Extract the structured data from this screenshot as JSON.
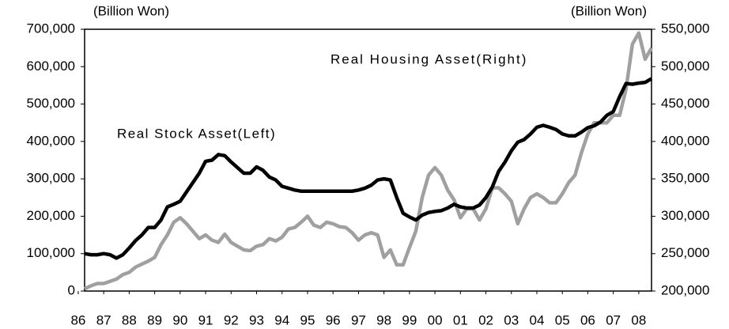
{
  "chart_data": {
    "type": "line",
    "y_unit_left": "(Billion Won)",
    "y_unit_right": "(Billion Won)",
    "x": [
      1986.25,
      1986.5,
      1986.75,
      1987,
      1987.25,
      1987.5,
      1987.75,
      1988,
      1988.25,
      1988.5,
      1988.75,
      1989,
      1989.25,
      1989.5,
      1989.75,
      1990,
      1990.25,
      1990.5,
      1990.75,
      1991,
      1991.25,
      1991.5,
      1991.75,
      1992,
      1992.25,
      1992.5,
      1992.75,
      1993,
      1993.25,
      1993.5,
      1993.75,
      1994,
      1994.25,
      1994.5,
      1994.75,
      1995,
      1995.25,
      1995.5,
      1995.75,
      1996,
      1996.25,
      1996.5,
      1996.75,
      1997,
      1997.25,
      1997.5,
      1997.75,
      1998,
      1998.25,
      1998.5,
      1998.75,
      1999,
      1999.25,
      1999.5,
      1999.75,
      2000,
      2000.25,
      2000.5,
      2000.75,
      2001,
      2001.25,
      2001.5,
      2001.75,
      2002,
      2002.25,
      2002.5,
      2002.75,
      2003,
      2003.25,
      2003.5,
      2003.75,
      2004,
      2004.25,
      2004.5,
      2004.75,
      2005,
      2005.25,
      2005.5,
      2005.75,
      2006,
      2006.25,
      2006.5,
      2006.75,
      2007,
      2007.25,
      2007.5,
      2007.75,
      2008,
      2008.25,
      2008.5
    ],
    "series": [
      {
        "name": "Real Housing Asset(Right)",
        "color": "#a0a0a0",
        "axis": "y2",
        "values": [
          203000,
          207000,
          210000,
          210000,
          213000,
          216000,
          222000,
          225000,
          232000,
          236000,
          240000,
          245000,
          262000,
          275000,
          292000,
          298000,
          290000,
          280000,
          270000,
          275000,
          268000,
          265000,
          276000,
          265000,
          260000,
          255000,
          254000,
          260000,
          262000,
          270000,
          267000,
          272000,
          283000,
          285000,
          292000,
          300000,
          288000,
          285000,
          292000,
          290000,
          286000,
          285000,
          278000,
          268000,
          275000,
          278000,
          275000,
          245000,
          255000,
          235000,
          235000,
          258000,
          280000,
          325000,
          355000,
          365000,
          355000,
          335000,
          322000,
          298000,
          310000,
          310000,
          295000,
          310000,
          338000,
          338000,
          330000,
          320000,
          290000,
          310000,
          325000,
          330000,
          325000,
          318000,
          318000,
          330000,
          345000,
          355000,
          385000,
          410000,
          425000,
          425000,
          425000,
          435000,
          435000,
          470000,
          530000,
          545000,
          510000,
          525000
        ]
      },
      {
        "name": "Real Stock Asset(Left)",
        "color": "#000000",
        "values": [
          100000,
          97000,
          97000,
          100000,
          97000,
          88000,
          97000,
          115000,
          135000,
          150000,
          170000,
          170000,
          190000,
          225000,
          232000,
          240000,
          265000,
          290000,
          315000,
          347000,
          350000,
          365000,
          362000,
          345000,
          330000,
          315000,
          315000,
          332000,
          323000,
          305000,
          297000,
          280000,
          275000,
          270000,
          267000,
          267000,
          267000,
          267000,
          267000,
          267000,
          267000,
          267000,
          267000,
          270000,
          275000,
          283000,
          297000,
          300000,
          297000,
          250000,
          208000,
          198000,
          190000,
          203000,
          210000,
          213000,
          215000,
          222000,
          232000,
          225000,
          222000,
          222000,
          230000,
          250000,
          278000,
          320000,
          345000,
          375000,
          398000,
          405000,
          420000,
          438000,
          443000,
          438000,
          432000,
          420000,
          415000,
          415000,
          425000,
          437000,
          442000,
          452000,
          470000,
          480000,
          520000,
          555000,
          553000,
          556000,
          558000,
          568000
        ]
      }
    ],
    "xlim": [
      1986.25,
      2008.5
    ],
    "xticks": [
      {
        "value": 1986,
        "label": "86"
      },
      {
        "value": 1987,
        "label": "87"
      },
      {
        "value": 1988,
        "label": "88"
      },
      {
        "value": 1989,
        "label": "89"
      },
      {
        "value": 1990,
        "label": "90"
      },
      {
        "value": 1991,
        "label": "91"
      },
      {
        "value": 1992,
        "label": "92"
      },
      {
        "value": 1993,
        "label": "93"
      },
      {
        "value": 1994,
        "label": "94"
      },
      {
        "value": 1995,
        "label": "95"
      },
      {
        "value": 1996,
        "label": "96"
      },
      {
        "value": 1997,
        "label": "97"
      },
      {
        "value": 1998,
        "label": "98"
      },
      {
        "value": 1999,
        "label": "99"
      },
      {
        "value": 2000,
        "label": "00"
      },
      {
        "value": 2001,
        "label": "01"
      },
      {
        "value": 2002,
        "label": "02"
      },
      {
        "value": 2003,
        "label": "03"
      },
      {
        "value": 2004,
        "label": "04"
      },
      {
        "value": 2005,
        "label": "05"
      },
      {
        "value": 2006,
        "label": "06"
      },
      {
        "value": 2007,
        "label": "07"
      },
      {
        "value": 2008,
        "label": "08"
      }
    ],
    "ylim": [
      0,
      700000
    ],
    "yticks": [
      0,
      {
        "value": 100000,
        "label": "100,000"
      },
      {
        "value": 200000,
        "label": "200,000"
      },
      {
        "value": 300000,
        "label": "300,000"
      },
      {
        "value": 400000,
        "label": "400,000"
      },
      {
        "value": 500000,
        "label": "500,000"
      },
      {
        "value": 600000,
        "label": "600,000"
      },
      {
        "value": 700000,
        "label": "700,000"
      }
    ],
    "y2lim": [
      200000,
      550000
    ],
    "y2ticks": [
      {
        "value": 200000,
        "label": "200,000"
      },
      {
        "value": 250000,
        "label": "250,000"
      },
      {
        "value": 300000,
        "label": "300,000"
      },
      {
        "value": 350000,
        "label": "350,000"
      },
      {
        "value": 400000,
        "label": "400,000"
      },
      {
        "value": 450000,
        "label": "450,000"
      },
      {
        "value": 500000,
        "label": "500,000"
      },
      {
        "value": 550000,
        "label": "550,000"
      }
    ],
    "grid": false
  }
}
